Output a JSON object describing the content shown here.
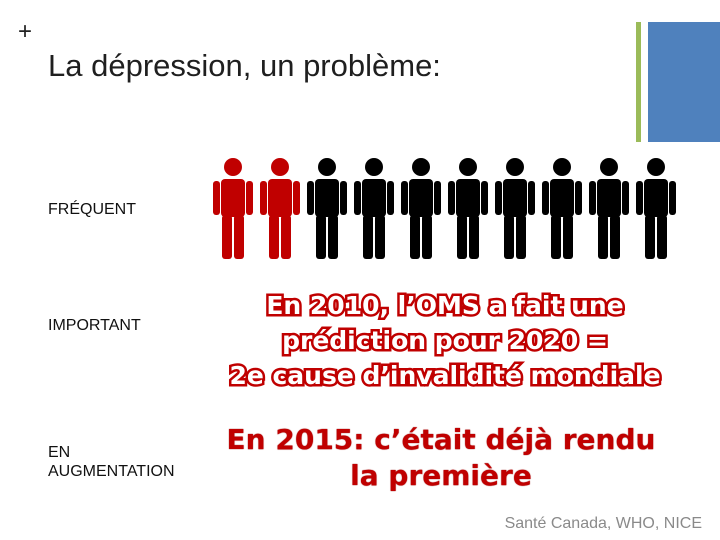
{
  "slide": {
    "plus": "+",
    "title": "La dépression, un problème:",
    "labels": {
      "frequent": "FRÉQUENT",
      "important": "IMPORTANT",
      "augmentation": "EN\nAUGMENTATION"
    },
    "people": {
      "total": 10,
      "highlighted": 2,
      "highlight_color": "#c00000",
      "other_color": "#000000"
    },
    "prediction": [
      "En 2010, l’OMS a fait une",
      "prédiction pour 2020 =",
      "2e cause d’invalidité mondiale"
    ],
    "result": [
      "En 2015: c’était déjà rendu",
      "la première"
    ],
    "source": "Santé Canada, WHO, NICE",
    "colors": {
      "green_bar": "#9bbb59",
      "blue_bar": "#4f81bd",
      "accent_red": "#c00000"
    }
  }
}
